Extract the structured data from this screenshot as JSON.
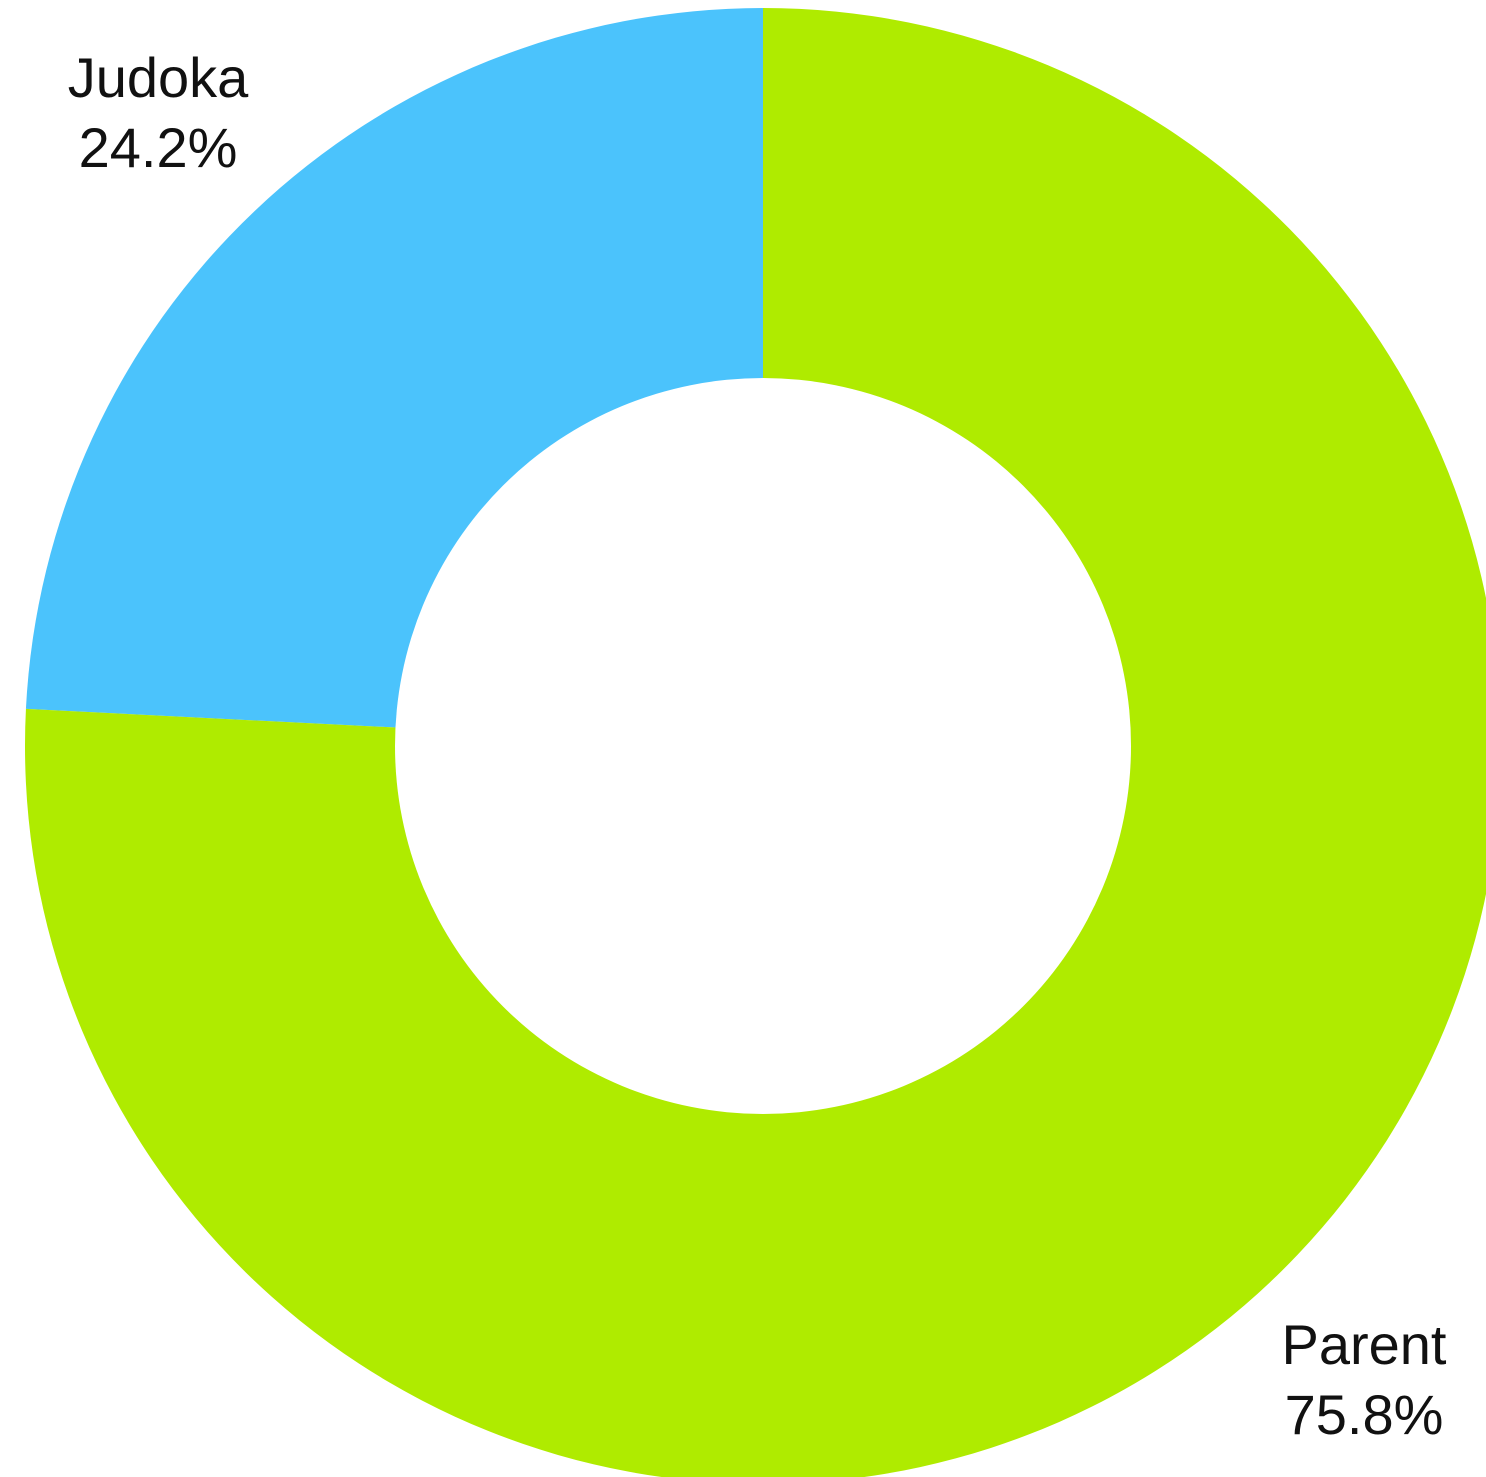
{
  "chart_data": {
    "type": "pie",
    "variant": "donut",
    "slices": [
      {
        "label": "Judoka",
        "value": 24.2,
        "display": "24.2%",
        "color": "#4bc3fc"
      },
      {
        "label": "Parent",
        "value": 75.8,
        "display": "75.8%",
        "color": "#afeb00"
      }
    ]
  }
}
